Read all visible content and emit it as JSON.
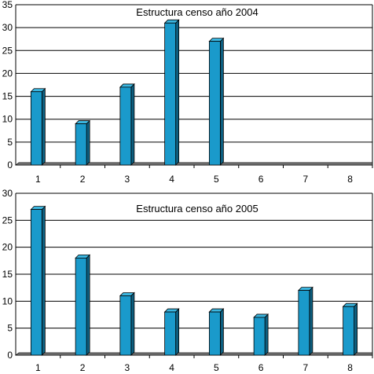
{
  "chart_data": [
    {
      "type": "bar",
      "title": "Estructura censo año 2004",
      "categories": [
        "1",
        "2",
        "3",
        "4",
        "5",
        "6",
        "7",
        "8"
      ],
      "values": [
        16,
        9,
        17,
        31,
        27,
        0,
        0,
        0
      ],
      "yticks": [
        "0",
        "5",
        "10",
        "15",
        "20",
        "25",
        "30",
        "35"
      ],
      "ylim": [
        0,
        35
      ],
      "xlabel": "",
      "ylabel": "",
      "grid": true,
      "legend": "none",
      "bar_color": "#1a9acb"
    },
    {
      "type": "bar",
      "title": "Estructura censo año 2005",
      "categories": [
        "1",
        "2",
        "3",
        "4",
        "5",
        "6",
        "7",
        "8"
      ],
      "values": [
        27,
        18,
        11,
        8,
        8,
        7,
        12,
        9
      ],
      "yticks": [
        "0",
        "5",
        "10",
        "15",
        "20",
        "25",
        "30"
      ],
      "ylim": [
        0,
        30
      ],
      "xlabel": "",
      "ylabel": "",
      "grid": true,
      "legend": "none",
      "bar_color": "#1a9acb"
    }
  ]
}
